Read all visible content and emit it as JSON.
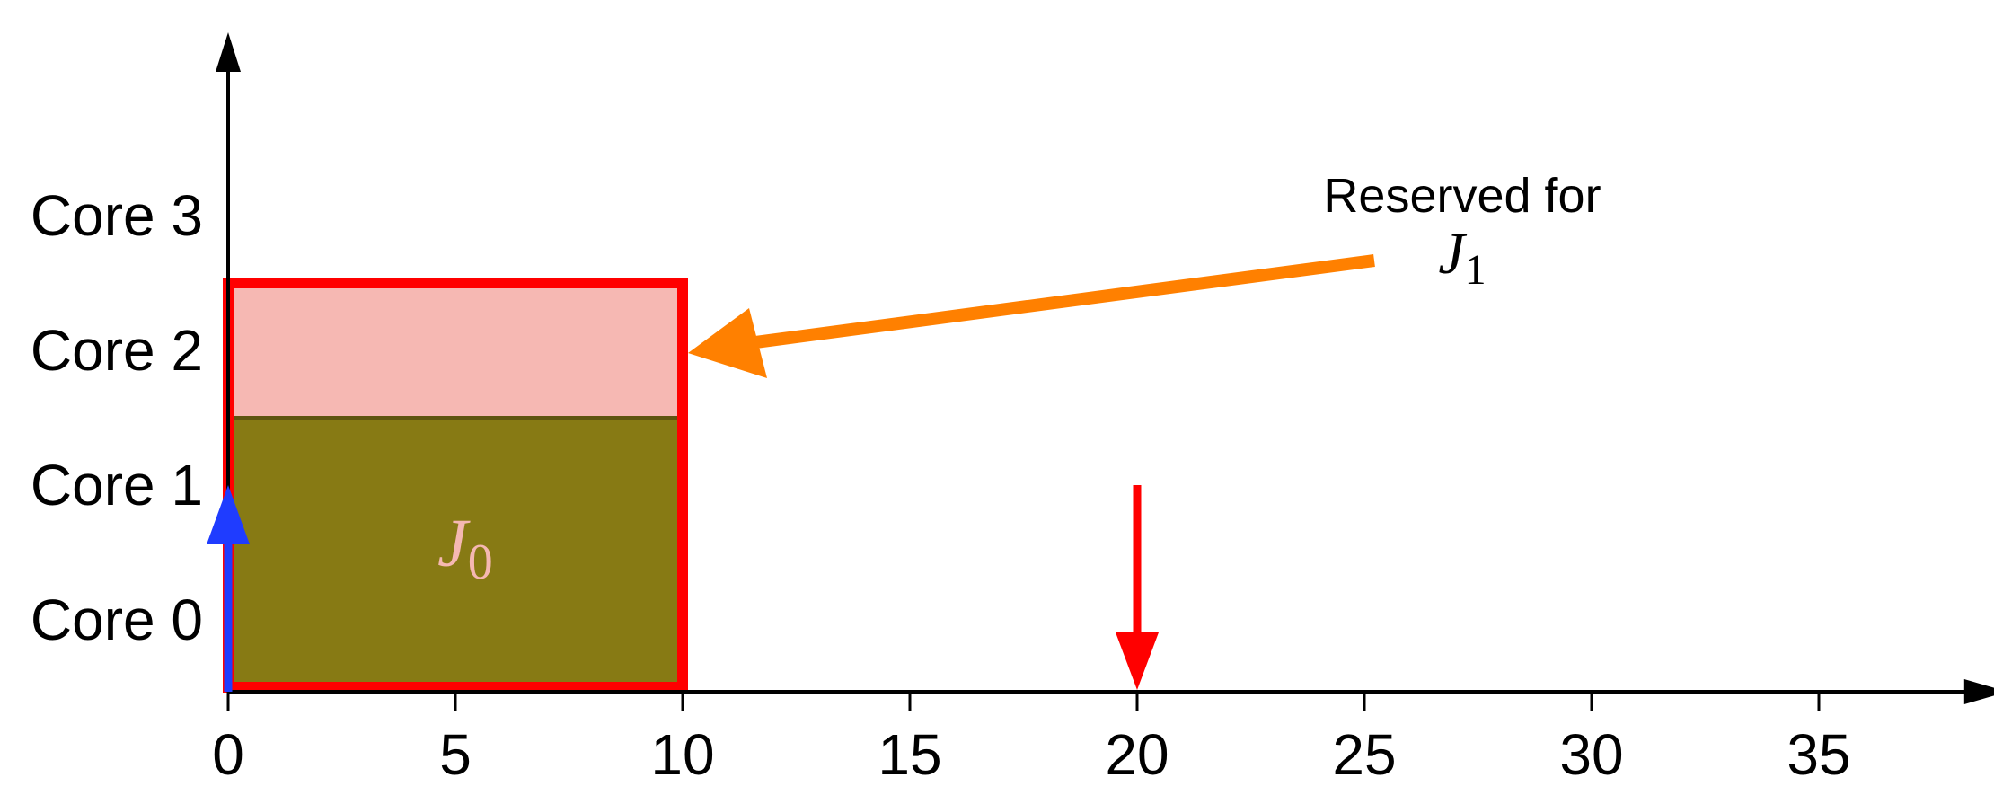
{
  "chart_data": {
    "type": "gantt",
    "x_ticks": [
      0,
      5,
      10,
      15,
      20,
      25,
      30,
      35
    ],
    "xlim": [
      0,
      38
    ],
    "cores": [
      "Core 0",
      "Core 1",
      "Core 2",
      "Core 3"
    ],
    "jobs": [
      {
        "name": "J",
        "sub": "0",
        "start": 0,
        "end": 10,
        "cores": [
          0,
          1
        ],
        "color": "#877a14",
        "label_color": "#f5b8b2"
      }
    ],
    "reservations": [
      {
        "start": 0,
        "end": 10,
        "cores": [
          2
        ],
        "color": "#f6b8b3",
        "border_color": "#ff0000"
      }
    ],
    "markers": [
      {
        "kind": "release",
        "x": 0,
        "color": "#1f3cff"
      },
      {
        "kind": "deadline",
        "x": 20,
        "color": "#ff0000"
      }
    ],
    "annotation": {
      "line1": "Reserved for",
      "math_main": "J",
      "math_sub": "1",
      "color": "#ff8000"
    }
  }
}
